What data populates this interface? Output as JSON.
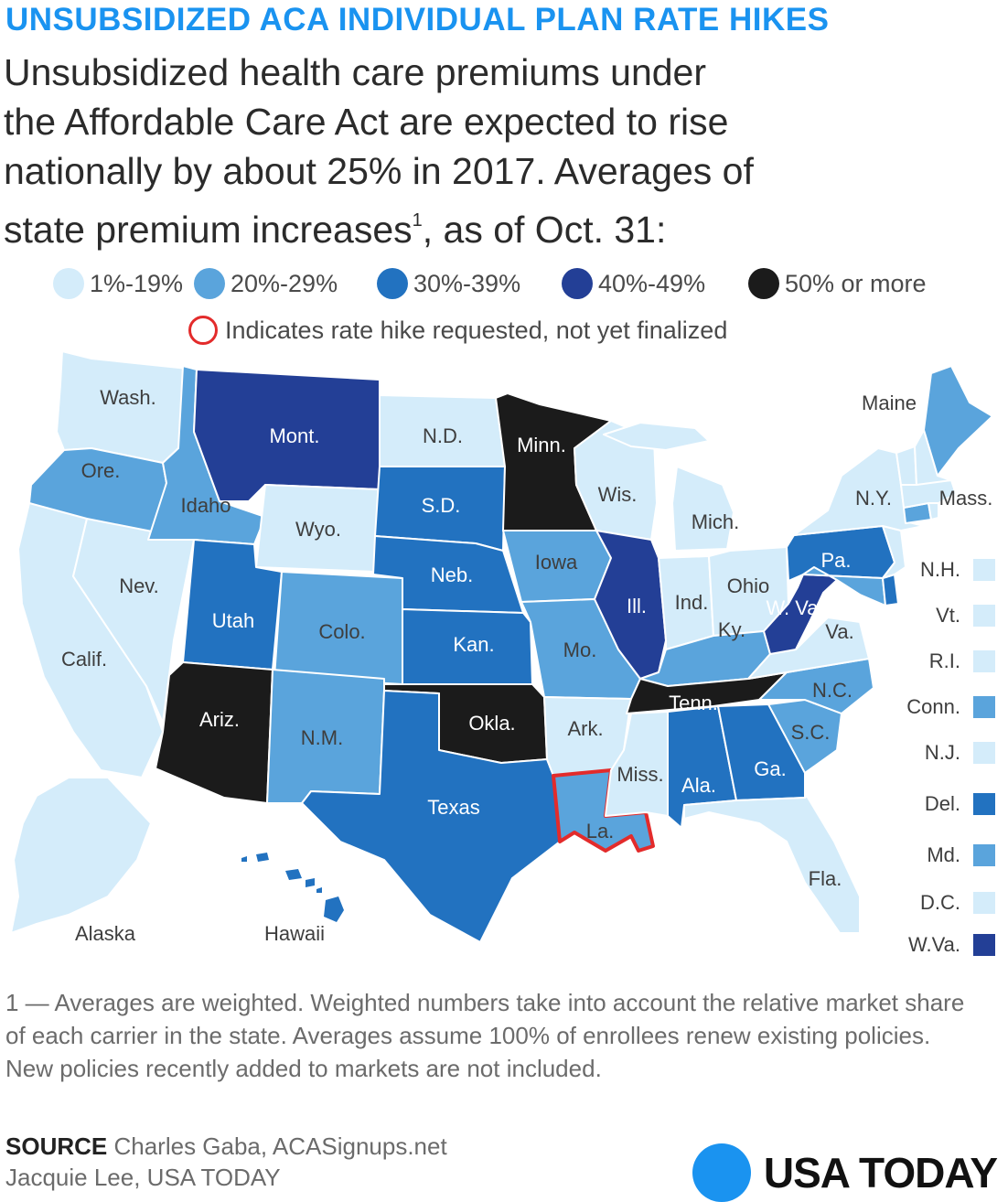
{
  "headline": "UNSUBSIDIZED ACA INDIVIDUAL PLAN RATE HIKES",
  "subhead": {
    "line1": "Unsubsidized health care premiums under",
    "line2": "the Affordable Care Act are expected to rise",
    "line3": "nationally by about 25% in 2017. Averages of",
    "line4_pre": "state premium increases",
    "line4_sup": "1",
    "line4_post": ", as of Oct. 31:"
  },
  "colors": {
    "bin1": "#d4ecfa",
    "bin2": "#5aa4dc",
    "bin3": "#2272c0",
    "bin4": "#233f96",
    "bin5": "#1b1b1b",
    "pending": "#e32b2b",
    "brand": "#1a93f0"
  },
  "legend": {
    "bins": [
      {
        "label": "1%-19%",
        "color": "#d4ecfa"
      },
      {
        "label": "20%-29%",
        "color": "#5aa4dc"
      },
      {
        "label": "30%-39%",
        "color": "#2272c0"
      },
      {
        "label": "40%-49%",
        "color": "#233f96"
      },
      {
        "label": "50% or more",
        "color": "#1b1b1b"
      }
    ],
    "pending_note": "Indicates rate hike requested, not yet finalized"
  },
  "map": {
    "states": {
      "wa": {
        "label": "Wash.",
        "bin": "1%-19%"
      },
      "or": {
        "label": "Ore.",
        "bin": "20%-29%"
      },
      "ca": {
        "label": "Calif.",
        "bin": "1%-19%"
      },
      "nv": {
        "label": "Nev.",
        "bin": "1%-19%"
      },
      "id": {
        "label": "Idaho",
        "bin": "20%-29%"
      },
      "mt": {
        "label": "Mont.",
        "bin": "40%-49%"
      },
      "wy": {
        "label": "Wyo.",
        "bin": "1%-19%"
      },
      "ut": {
        "label": "Utah",
        "bin": "30%-39%"
      },
      "az": {
        "label": "Ariz.",
        "bin": "50% or more"
      },
      "co": {
        "label": "Colo.",
        "bin": "20%-29%"
      },
      "nm": {
        "label": "N.M.",
        "bin": "20%-29%"
      },
      "nd": {
        "label": "N.D.",
        "bin": "1%-19%"
      },
      "sd": {
        "label": "S.D.",
        "bin": "30%-39%"
      },
      "ne": {
        "label": "Neb.",
        "bin": "30%-39%"
      },
      "ks": {
        "label": "Kan.",
        "bin": "30%-39%"
      },
      "ok": {
        "label": "Okla.",
        "bin": "50% or more"
      },
      "tx": {
        "label": "Texas",
        "bin": "30%-39%"
      },
      "mn": {
        "label": "Minn.",
        "bin": "50% or more"
      },
      "ia": {
        "label": "Iowa",
        "bin": "20%-29%"
      },
      "mo": {
        "label": "Mo.",
        "bin": "20%-29%"
      },
      "ar": {
        "label": "Ark.",
        "bin": "1%-19%"
      },
      "la": {
        "label": "La.",
        "bin": "20%-29%",
        "pending": true
      },
      "wi": {
        "label": "Wis.",
        "bin": "1%-19%"
      },
      "il": {
        "label": "Ill.",
        "bin": "40%-49%"
      },
      "mi": {
        "label": "Mich.",
        "bin": "1%-19%"
      },
      "in": {
        "label": "Ind.",
        "bin": "1%-19%"
      },
      "oh": {
        "label": "Ohio",
        "bin": "1%-19%"
      },
      "ky": {
        "label": "Ky.",
        "bin": "20%-29%"
      },
      "tn": {
        "label": "Tenn.",
        "bin": "50% or more"
      },
      "ms": {
        "label": "Miss.",
        "bin": "1%-19%"
      },
      "al": {
        "label": "Ala.",
        "bin": "30%-39%"
      },
      "ga": {
        "label": "Ga.",
        "bin": "30%-39%"
      },
      "fl": {
        "label": "Fla.",
        "bin": "1%-19%"
      },
      "sc": {
        "label": "S.C.",
        "bin": "20%-29%"
      },
      "nc": {
        "label": "N.C.",
        "bin": "20%-29%"
      },
      "va": {
        "label": "Va.",
        "bin": "1%-19%"
      },
      "wv": {
        "label": "W. Va",
        "bin": "40%-49%"
      },
      "pa": {
        "label": "Pa.",
        "bin": "30%-39%"
      },
      "ny": {
        "label": "N.Y.",
        "bin": "1%-19%"
      },
      "me": {
        "label": "Maine",
        "bin": "20%-29%"
      },
      "ma": {
        "label": "Mass.",
        "bin": "1%-19%"
      },
      "ak": {
        "label": "Alaska",
        "bin": "1%-19%"
      },
      "hi": {
        "label": "Hawaii",
        "bin": "30%-39%"
      }
    },
    "small_states": [
      {
        "label": "N.H.",
        "color": "#d4ecfa"
      },
      {
        "label": "Vt.",
        "color": "#d4ecfa"
      },
      {
        "label": "R.I.",
        "color": "#d4ecfa"
      },
      {
        "label": "Conn.",
        "color": "#5aa4dc"
      },
      {
        "label": "N.J.",
        "color": "#d4ecfa"
      },
      {
        "label": "Del.",
        "color": "#2272c0"
      },
      {
        "label": "Md.",
        "color": "#5aa4dc"
      },
      {
        "label": "D.C.",
        "color": "#d4ecfa"
      },
      {
        "label": "W.Va.",
        "color": "#233f96"
      }
    ]
  },
  "footnote": "1 — Averages are weighted. Weighted numbers take into account the relative market share of each carrier in the state. Averages assume 100% of enrollees renew existing policies. New policies recently added to markets are not included.",
  "source": {
    "label": "SOURCE",
    "text": " Charles Gaba, ACASignups.net",
    "credit": "Jacquie Lee, USA TODAY"
  },
  "brand": "USA TODAY"
}
